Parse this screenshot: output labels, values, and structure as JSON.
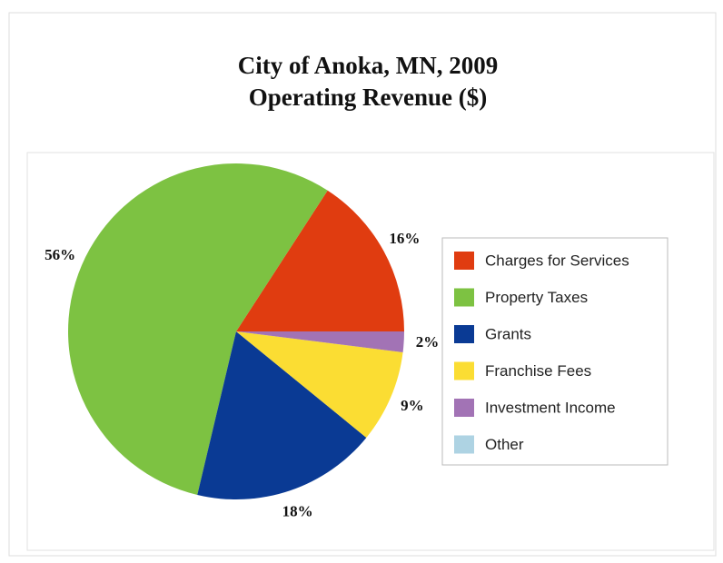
{
  "chart_data": {
    "type": "pie",
    "title": [
      "City of Anoka, MN, 2009",
      "Operating Revenue ($)"
    ],
    "categories": [
      "Charges for Services",
      "Property Taxes",
      "Grants",
      "Franchise Fees",
      "Investment Income",
      "Other"
    ],
    "values": [
      16,
      56,
      18,
      9,
      2,
      0
    ],
    "value_labels": [
      "16%",
      "56%",
      "18%",
      "9%",
      "2%",
      null
    ],
    "colors": [
      "#e03c10",
      "#7dc242",
      "#0a3a94",
      "#fbdd33",
      "#a273b5",
      "#aed3e3"
    ],
    "legend": "right"
  }
}
